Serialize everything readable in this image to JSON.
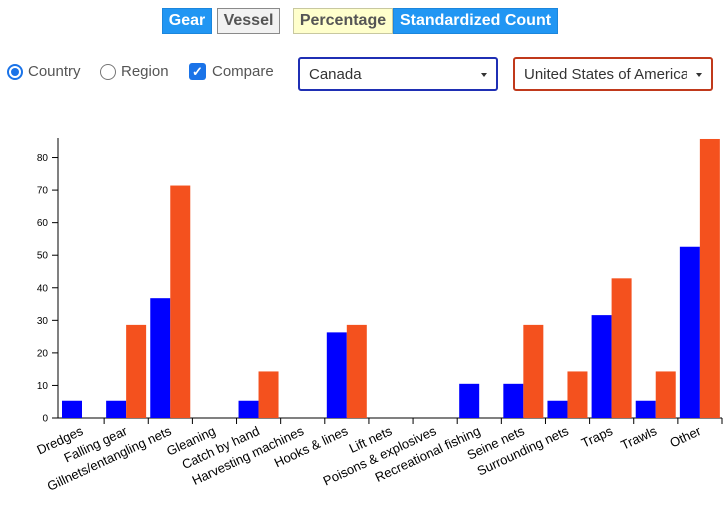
{
  "buttons": {
    "gear": "Gear",
    "vessel": "Vessel",
    "percentage": "Percentage",
    "standardized_count": "Standardized Count"
  },
  "filters": {
    "country_label": "Country",
    "region_label": "Region",
    "compare_label": "Compare",
    "selected_mode": "Country",
    "compare_checked": true,
    "checkbox_mark": "✓",
    "primary_selection": "Canada",
    "secondary_selection": "United States of America"
  },
  "colors": {
    "series_a": "#0000ff",
    "series_b": "#f4511e",
    "primary_select_border": "#1f2fb4",
    "secondary_select_border": "#c0391b",
    "accent": "#2196f3"
  },
  "chart_data": {
    "type": "bar",
    "title": "",
    "xlabel": "",
    "ylabel": "",
    "ylim": [
      0,
      86
    ],
    "yticks": [
      0,
      10,
      20,
      30,
      40,
      50,
      60,
      70,
      80
    ],
    "categories": [
      "Dredges",
      "Falling gear",
      "Gillnets/entangling nets",
      "Gleaning",
      "Catch by hand",
      "Harvesting machines",
      "Hooks & lines",
      "Lift nets",
      "Poisons & explosives",
      "Recreational fishing",
      "Seine nets",
      "Surrounding nets",
      "Traps",
      "Trawls",
      "Other"
    ],
    "series": [
      {
        "values": [
          5.3,
          5.3,
          36.8,
          0,
          5.3,
          0,
          26.3,
          0,
          0,
          10.5,
          10.5,
          5.3,
          31.6,
          5.3,
          52.6
        ]
      },
      {
        "values": [
          0,
          28.6,
          71.4,
          0,
          14.3,
          0,
          28.6,
          0,
          0,
          0,
          28.6,
          14.3,
          42.9,
          14.3,
          85.7
        ]
      }
    ],
    "grid": false,
    "legend": "none"
  }
}
